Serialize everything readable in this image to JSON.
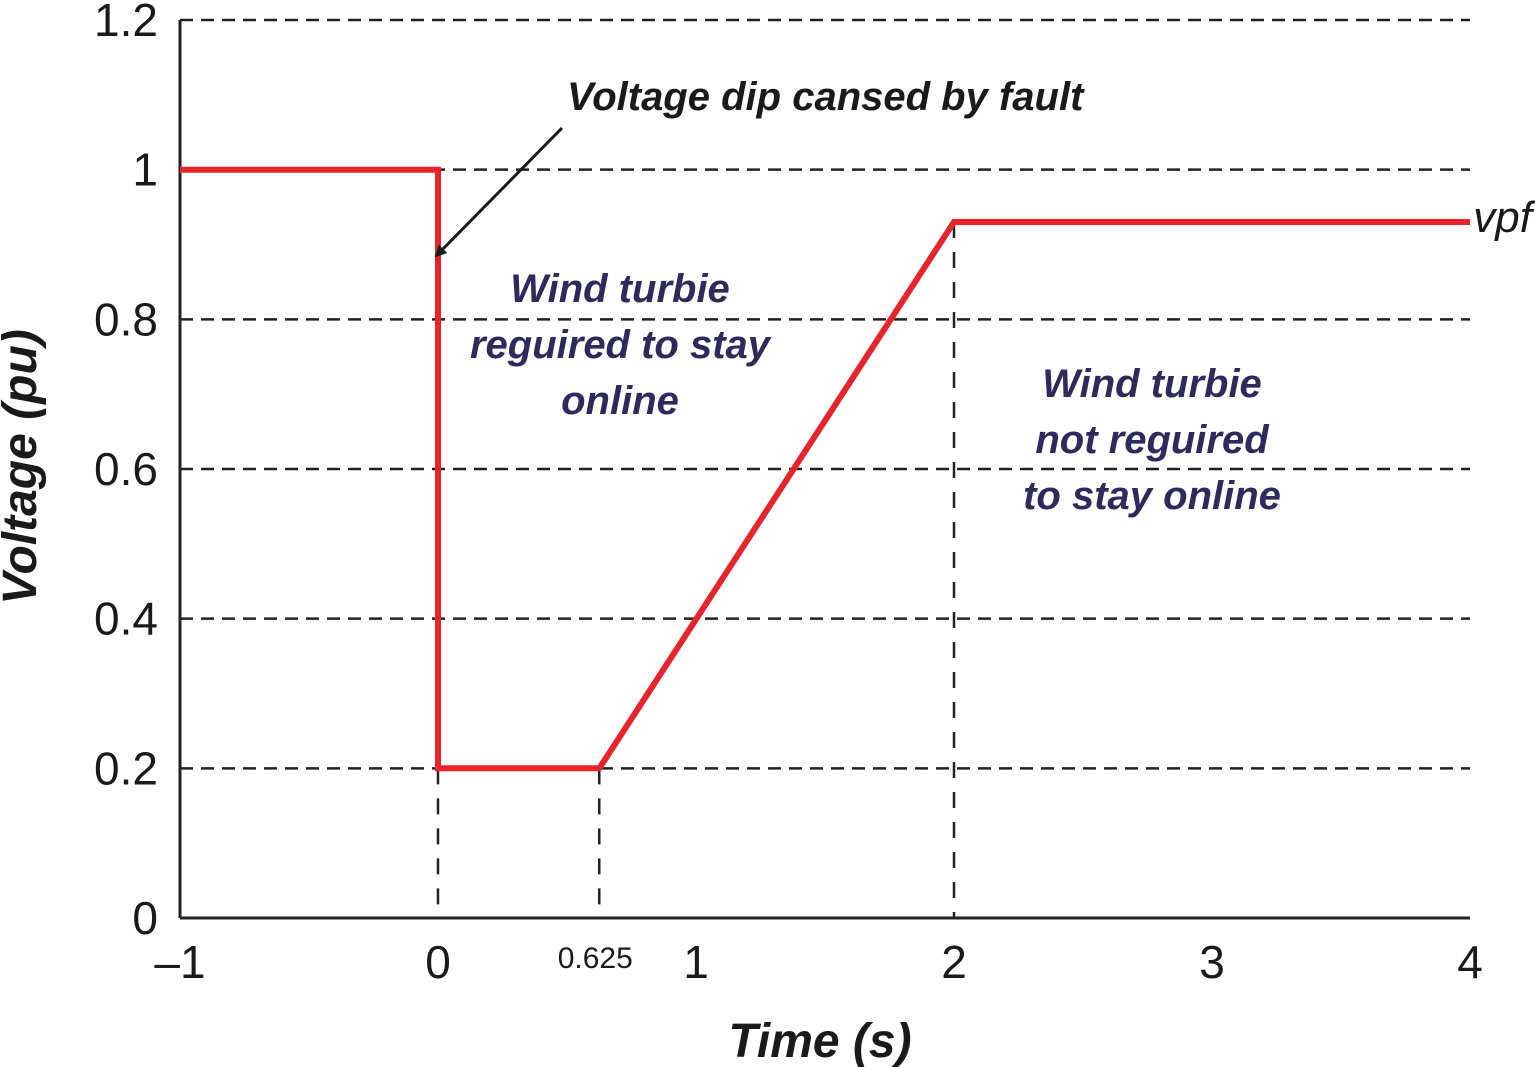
{
  "chart_data": {
    "type": "line",
    "xlabel": "Time (s)",
    "ylabel": "Voltage (pu)",
    "xlim": [
      -1,
      4
    ],
    "ylim": [
      0,
      1.2
    ],
    "x_ticks": [
      {
        "value": -1,
        "label": "–1"
      },
      {
        "value": 0,
        "label": "0"
      },
      {
        "value": 0.625,
        "label": "0.625"
      },
      {
        "value": 1,
        "label": "1"
      },
      {
        "value": 2,
        "label": "2"
      },
      {
        "value": 3,
        "label": "3"
      },
      {
        "value": 4,
        "label": "4"
      }
    ],
    "y_ticks": [
      {
        "value": 0,
        "label": "0"
      },
      {
        "value": 0.2,
        "label": "0.2"
      },
      {
        "value": 0.4,
        "label": "0.4"
      },
      {
        "value": 0.6,
        "label": "0.6"
      },
      {
        "value": 0.8,
        "label": "0.8"
      },
      {
        "value": 1,
        "label": "1"
      },
      {
        "value": 1.2,
        "label": "1.2"
      }
    ],
    "grid": "horizontal dashed",
    "series": [
      {
        "name": "vpf",
        "color": "#e8232a",
        "points": [
          {
            "x": -1,
            "y": 1.0
          },
          {
            "x": 0,
            "y": 1.0
          },
          {
            "x": 0,
            "y": 0.2
          },
          {
            "x": 0.625,
            "y": 0.2
          },
          {
            "x": 2,
            "y": 0.93
          },
          {
            "x": 4,
            "y": 0.93
          }
        ]
      }
    ],
    "reference_lines": [
      {
        "x": 0,
        "y_from": 0,
        "y_to": 0.2
      },
      {
        "x": 0.625,
        "y_from": 0,
        "y_to": 0.2
      },
      {
        "x": 2,
        "y_from": 0,
        "y_to": 0.93
      }
    ],
    "annotations": {
      "fault": "Voltage dip cansed by fault",
      "stay_online": [
        "Wind turbie",
        "reguired to stay",
        "online"
      ],
      "not_required": [
        "Wind turbie",
        "not reguired",
        "to stay online"
      ]
    }
  }
}
